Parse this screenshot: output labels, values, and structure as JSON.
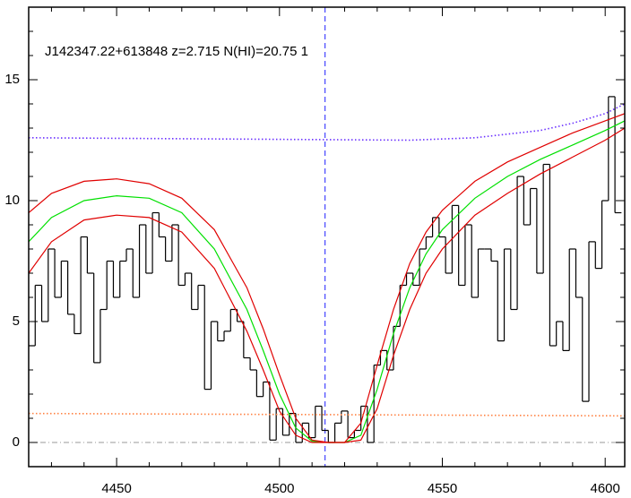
{
  "chart_data": {
    "type": "line",
    "title": "J142347.22+613848 z=2.715 N(HI)=20.75 1",
    "xlim": [
      4423,
      4606
    ],
    "ylim": [
      -1,
      18
    ],
    "xticks": [
      4450,
      4500,
      4550,
      4600
    ],
    "yticks": [
      0,
      5,
      10,
      15
    ],
    "xminorticks": [
      4430,
      4440,
      4460,
      4470,
      4480,
      4490,
      4510,
      4520,
      4530,
      4540,
      4560,
      4570,
      4580,
      4590
    ],
    "yminorticks": [
      1,
      2,
      3,
      4,
      6,
      7,
      8,
      9,
      11,
      12,
      13,
      14,
      16,
      17
    ],
    "vlines": [
      {
        "x": 4514,
        "color": "#2020ff",
        "dash": "6,4"
      }
    ],
    "hlines": [
      {
        "y": 0,
        "color": "#999999",
        "dash": "6,3,1,3"
      }
    ],
    "series": [
      {
        "style": "step",
        "color": "#000000",
        "x": [
          4424,
          4426,
          4428,
          4430,
          4432,
          4434,
          4436,
          4438,
          4440,
          4442,
          4444,
          4446,
          4448,
          4450,
          4452,
          4454,
          4456,
          4458,
          4460,
          4462,
          4464,
          4466,
          4468,
          4470,
          4472,
          4474,
          4476,
          4478,
          4480,
          4482,
          4484,
          4486,
          4488,
          4490,
          4492,
          4494,
          4496,
          4498,
          4500,
          4502,
          4504,
          4506,
          4508,
          4510,
          4512,
          4514,
          4516,
          4518,
          4520,
          4522,
          4524,
          4526,
          4528,
          4530,
          4532,
          4534,
          4536,
          4538,
          4540,
          4542,
          4544,
          4546,
          4548,
          4550,
          4552,
          4554,
          4556,
          4558,
          4560,
          4562,
          4564,
          4566,
          4568,
          4570,
          4572,
          4574,
          4576,
          4578,
          4580,
          4582,
          4584,
          4586,
          4588,
          4590,
          4592,
          4594,
          4596,
          4598,
          4600,
          4602,
          4604
        ],
        "values": [
          4,
          6.5,
          5,
          8,
          6,
          7.5,
          5.3,
          4.5,
          8.5,
          7,
          3.3,
          5.5,
          7.5,
          6,
          7.5,
          8,
          6,
          9,
          7,
          9.5,
          8.5,
          7.5,
          9,
          6.5,
          7,
          5.5,
          6.5,
          2.2,
          5,
          4.2,
          4.6,
          5.5,
          5,
          3.5,
          3,
          1.9,
          2.5,
          0.1,
          1.4,
          0.3,
          1.2,
          0,
          0.8,
          0.2,
          1.5,
          0.5,
          0,
          0.8,
          1.3,
          0.2,
          0.5,
          1.5,
          0,
          3.2,
          3.8,
          3,
          4.8,
          6.5,
          7,
          6.5,
          8,
          8.5,
          9.3,
          8.5,
          7,
          9.8,
          6.5,
          9,
          6,
          8,
          8,
          7.5,
          4.2,
          8,
          5.5,
          11,
          9,
          10.5,
          7,
          11.5,
          4,
          5,
          3.8,
          8,
          6,
          1.7,
          8.3,
          7.2,
          10,
          14.3,
          9.5
        ]
      },
      {
        "style": "solid",
        "color": "#00e000",
        "x": [
          4423,
          4430,
          4440,
          4450,
          4460,
          4470,
          4480,
          4490,
          4495,
          4500,
          4505,
          4510,
          4515,
          4520,
          4525,
          4530,
          4535,
          4540,
          4545,
          4550,
          4560,
          4570,
          4580,
          4590,
          4600,
          4606
        ],
        "values": [
          8.3,
          9.3,
          10,
          10.2,
          10.1,
          9.5,
          8,
          5.5,
          3.8,
          2,
          0.6,
          0.05,
          0,
          0,
          0.3,
          2.2,
          4.5,
          6.4,
          7.8,
          8.8,
          10.1,
          11,
          11.7,
          12.3,
          12.9,
          13.3
        ]
      },
      {
        "style": "solid",
        "color": "#e00000",
        "x": [
          4423,
          4430,
          4440,
          4450,
          4460,
          4470,
          4480,
          4490,
          4495,
          4500,
          4505,
          4510,
          4515,
          4520,
          4525,
          4530,
          4535,
          4540,
          4545,
          4550,
          4560,
          4570,
          4580,
          4590,
          4600,
          4606
        ],
        "values": [
          9.5,
          10.3,
          10.8,
          10.9,
          10.7,
          10.1,
          8.8,
          6.4,
          4.7,
          2.8,
          1,
          0.1,
          0,
          0,
          0.8,
          3.2,
          5.5,
          7.4,
          8.7,
          9.6,
          10.8,
          11.6,
          12.2,
          12.8,
          13.3,
          13.6
        ]
      },
      {
        "style": "solid",
        "color": "#e00000",
        "x": [
          4423,
          4430,
          4440,
          4450,
          4460,
          4470,
          4480,
          4490,
          4495,
          4500,
          4505,
          4510,
          4515,
          4520,
          4525,
          4530,
          4535,
          4540,
          4545,
          4550,
          4560,
          4570,
          4580,
          4590,
          4600,
          4606
        ],
        "values": [
          7,
          8.3,
          9.2,
          9.4,
          9.3,
          8.7,
          7.2,
          4.6,
          3,
          1.3,
          0.3,
          0,
          0,
          0,
          0.1,
          1.4,
          3.6,
          5.5,
          7,
          8,
          9.4,
          10.3,
          11.1,
          11.8,
          12.5,
          13
        ]
      },
      {
        "style": "dotted",
        "color": "#6a30ff",
        "x": [
          4423,
          4540,
          4560,
          4580,
          4590,
          4600,
          4606
        ],
        "values": [
          12.6,
          12.5,
          12.6,
          12.9,
          13.2,
          13.6,
          14
        ]
      },
      {
        "style": "dotted",
        "color": "#ff8040",
        "x": [
          4423,
          4606
        ],
        "values": [
          1.2,
          1.1
        ]
      }
    ]
  }
}
